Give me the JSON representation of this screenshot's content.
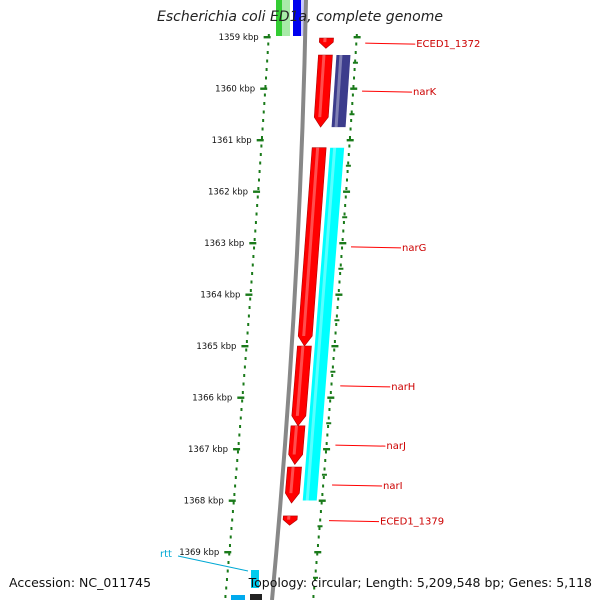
{
  "title": "Escherichia coli ED1a, complete genome",
  "footer": {
    "accession": "Accession: NC_011745",
    "summary": "Topology: circular; Length: 5,209,548 bp; Genes: 5,118"
  },
  "colors": {
    "forward_cds": "#ff0000",
    "reverse_cds": "#ff0000",
    "operon_cyan": "#00ffff",
    "operon_navy": "#3c3c8c",
    "ticks": "#1a7a1a",
    "backbone": "#888888",
    "rna": "#00a8d4"
  },
  "ticks": [
    {
      "kbp": 1359,
      "label": "1359 kbp"
    },
    {
      "kbp": 1360,
      "label": "1360 kbp"
    },
    {
      "kbp": 1361,
      "label": "1361 kbp"
    },
    {
      "kbp": 1362,
      "label": "1362 kbp"
    },
    {
      "kbp": 1363,
      "label": "1363 kbp"
    },
    {
      "kbp": 1364,
      "label": "1364 kbp"
    },
    {
      "kbp": 1365,
      "label": "1365 kbp"
    },
    {
      "kbp": 1366,
      "label": "1366 kbp"
    },
    {
      "kbp": 1367,
      "label": "1367 kbp"
    },
    {
      "kbp": 1368,
      "label": "1368 kbp"
    },
    {
      "kbp": 1369,
      "label": "1369 kbp"
    }
  ],
  "genes": [
    {
      "label": "ECED1_1372",
      "start": 1359.02,
      "end": 1359.22,
      "strand": "reverse"
    },
    {
      "label": "narK",
      "start": 1359.35,
      "end": 1360.75,
      "strand": "reverse"
    },
    {
      "label": "narG",
      "start": 1361.15,
      "end": 1365.0,
      "strand": "reverse"
    },
    {
      "label": "narH",
      "start": 1365.0,
      "end": 1366.55,
      "strand": "reverse"
    },
    {
      "label": "narJ",
      "start": 1366.55,
      "end": 1367.3,
      "strand": "reverse"
    },
    {
      "label": "narI",
      "start": 1367.35,
      "end": 1368.05,
      "strand": "reverse"
    },
    {
      "label": "ECED1_1379",
      "start": 1368.3,
      "end": 1368.48,
      "strand": "reverse"
    }
  ],
  "operon_blocks": [
    {
      "start": 1359.35,
      "end": 1360.75,
      "color": "navy"
    },
    {
      "start": 1361.15,
      "end": 1368.0,
      "color": "cyan"
    }
  ],
  "rna": [
    {
      "label": "rtt"
    }
  ]
}
